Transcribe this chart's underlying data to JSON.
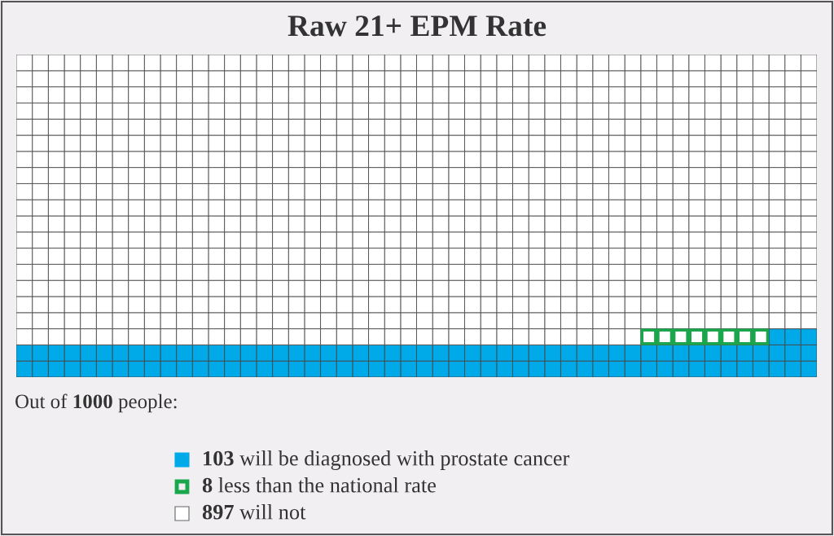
{
  "chart_data": {
    "type": "other",
    "title": "Raw 21+ EPM Rate",
    "categories": [
      "will be diagnosed with prostate cancer",
      "less than the national rate",
      "will not"
    ],
    "values": [
      103,
      8,
      897
    ],
    "colors": [
      "#00a9e8",
      "#1aa64b",
      "#ffffff"
    ],
    "data_labels": true,
    "annotations": [
      "Out of 1000 people:"
    ]
  }
}
